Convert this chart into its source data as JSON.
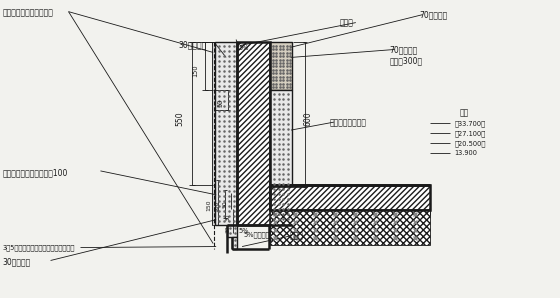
{
  "bg_color": "#f2f2ee",
  "line_color": "#1a1a1a",
  "labels": {
    "top_left": "成品聚苯板外墙装饰檐线",
    "label_30_top": "30厚聚苯板",
    "label_window_frame_top": "窗附框",
    "label_70_polystyrene": "70厚聚苯板",
    "label_70_rock_wool": "70厚岩棉板",
    "label_rock_wool_sub": "（高度300）",
    "label_anchor": "岩棉板专用锚固件",
    "label_bedroom": "卧室",
    "label_mesh": "附加网格布长度过岩棉过100",
    "label_5pct_bot": "5%（余同）",
    "label_window_frame_bot": "窗附框",
    "label_3to5": "3～5厚防护面层外复合镀锌钢丝网基布",
    "label_30_bottom": "30厚聚苯板",
    "elev_1": "〈33.700〉",
    "elev_2": "〈27.100〉",
    "elev_3": "〈20.500〉",
    "elev_4": "13.900"
  }
}
